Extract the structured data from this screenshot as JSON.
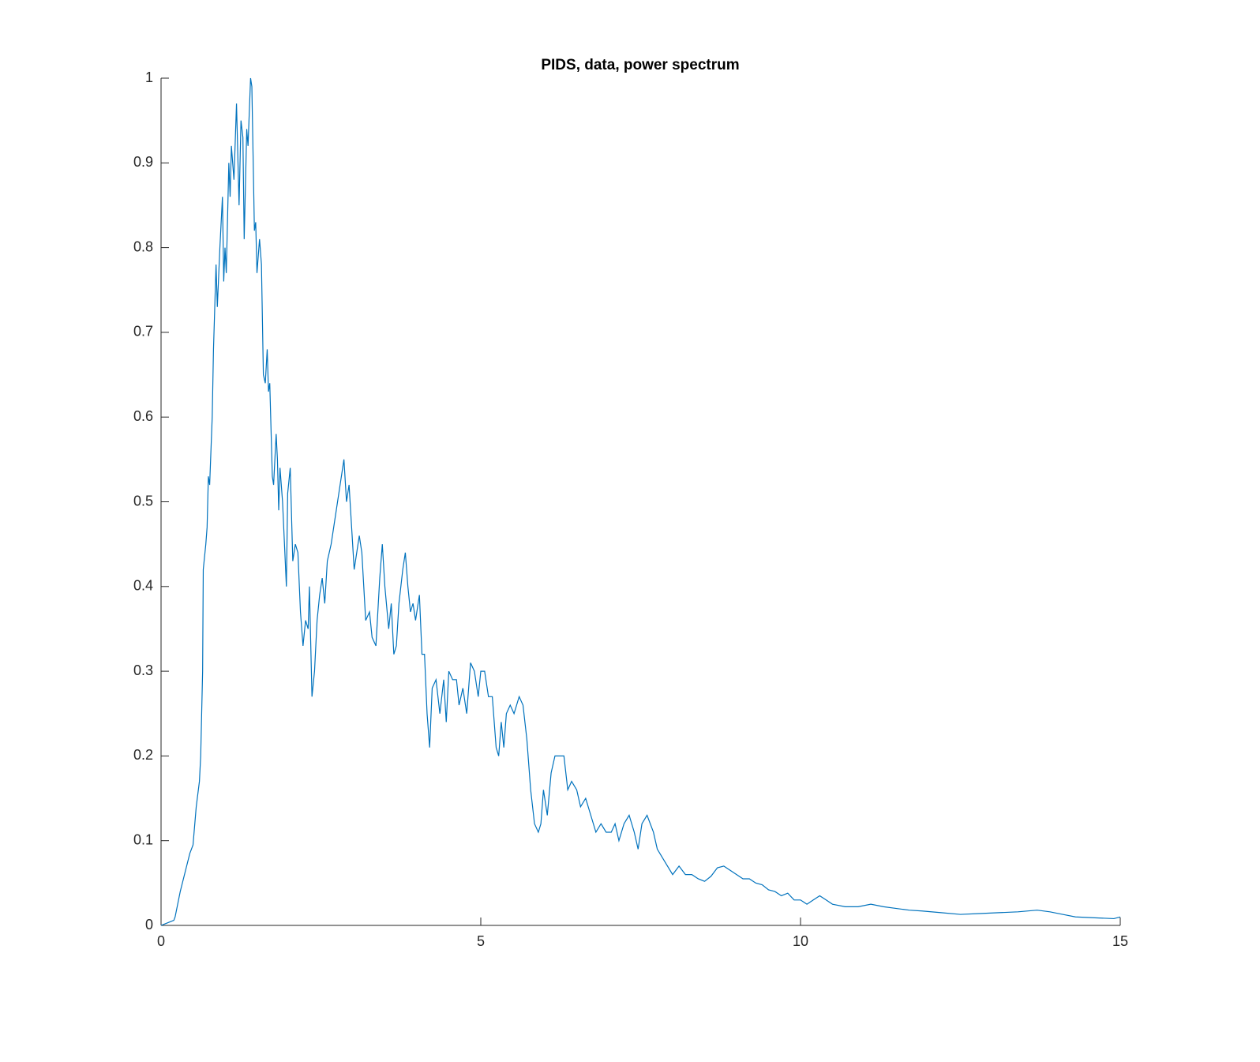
{
  "chart_data": {
    "type": "line",
    "title": "PIDS, data, power spectrum",
    "xlim": [
      0,
      15
    ],
    "xticks": [
      0,
      5,
      10,
      15
    ],
    "ylim": [
      0,
      1
    ],
    "yticks": [
      0,
      0.1,
      0.2,
      0.3,
      0.4,
      0.5,
      0.6,
      0.7,
      0.8,
      0.9,
      1
    ],
    "series": [
      {
        "color": "#0072bd",
        "x": [
          0,
          0.1,
          0.2,
          0.22,
          0.3,
          0.4,
          0.45,
          0.5,
          0.55,
          0.6,
          0.62,
          0.65,
          0.66,
          0.7,
          0.72,
          0.74,
          0.76,
          0.8,
          0.82,
          0.86,
          0.88,
          0.92,
          0.96,
          0.98,
          1.0,
          1.02,
          1.06,
          1.08,
          1.1,
          1.14,
          1.18,
          1.22,
          1.25,
          1.28,
          1.3,
          1.34,
          1.36,
          1.4,
          1.42,
          1.46,
          1.48,
          1.5,
          1.54,
          1.57,
          1.6,
          1.63,
          1.66,
          1.68,
          1.7,
          1.74,
          1.76,
          1.8,
          1.82,
          1.84,
          1.86,
          1.9,
          1.96,
          1.98,
          2.02,
          2.06,
          2.1,
          2.14,
          2.18,
          2.22,
          2.26,
          2.3,
          2.32,
          2.36,
          2.4,
          2.44,
          2.48,
          2.52,
          2.56,
          2.6,
          2.66,
          2.74,
          2.8,
          2.86,
          2.9,
          2.94,
          2.98,
          3.02,
          3.06,
          3.1,
          3.14,
          3.2,
          3.26,
          3.3,
          3.36,
          3.42,
          3.46,
          3.5,
          3.56,
          3.6,
          3.64,
          3.68,
          3.72,
          3.78,
          3.82,
          3.86,
          3.9,
          3.94,
          3.98,
          4.04,
          4.08,
          4.12,
          4.16,
          4.2,
          4.24,
          4.3,
          4.36,
          4.42,
          4.46,
          4.5,
          4.56,
          4.62,
          4.66,
          4.72,
          4.78,
          4.84,
          4.9,
          4.96,
          5.0,
          5.06,
          5.12,
          5.18,
          5.24,
          5.28,
          5.32,
          5.36,
          5.4,
          5.46,
          5.52,
          5.6,
          5.66,
          5.72,
          5.78,
          5.84,
          5.9,
          5.94,
          5.98,
          6.04,
          6.1,
          6.16,
          6.24,
          6.3,
          6.36,
          6.42,
          6.5,
          6.56,
          6.64,
          6.72,
          6.8,
          6.88,
          6.96,
          7.04,
          7.1,
          7.16,
          7.24,
          7.32,
          7.4,
          7.46,
          7.52,
          7.6,
          7.7,
          7.76,
          7.84,
          7.92,
          8.0,
          8.1,
          8.2,
          8.3,
          8.4,
          8.5,
          8.6,
          8.7,
          8.8,
          8.9,
          9.0,
          9.1,
          9.2,
          9.3,
          9.4,
          9.5,
          9.6,
          9.7,
          9.8,
          9.9,
          10.0,
          10.1,
          10.2,
          10.3,
          10.4,
          10.5,
          10.7,
          10.9,
          11.1,
          11.3,
          11.5,
          11.7,
          11.9,
          12.2,
          12.5,
          12.8,
          13.1,
          13.4,
          13.7,
          13.9,
          14.1,
          14.3,
          14.6,
          14.9,
          15.0
        ],
        "values": [
          0,
          0.003,
          0.006,
          0.01,
          0.04,
          0.07,
          0.085,
          0.095,
          0.14,
          0.17,
          0.2,
          0.3,
          0.42,
          0.45,
          0.47,
          0.53,
          0.52,
          0.6,
          0.68,
          0.78,
          0.73,
          0.8,
          0.86,
          0.76,
          0.8,
          0.77,
          0.9,
          0.86,
          0.92,
          0.88,
          0.97,
          0.85,
          0.95,
          0.93,
          0.81,
          0.94,
          0.92,
          1.0,
          0.99,
          0.82,
          0.83,
          0.77,
          0.81,
          0.78,
          0.65,
          0.64,
          0.68,
          0.63,
          0.64,
          0.53,
          0.52,
          0.58,
          0.55,
          0.49,
          0.54,
          0.5,
          0.4,
          0.51,
          0.54,
          0.43,
          0.45,
          0.44,
          0.37,
          0.33,
          0.36,
          0.35,
          0.4,
          0.27,
          0.3,
          0.36,
          0.39,
          0.41,
          0.38,
          0.43,
          0.45,
          0.49,
          0.52,
          0.55,
          0.5,
          0.52,
          0.47,
          0.42,
          0.44,
          0.46,
          0.44,
          0.36,
          0.37,
          0.34,
          0.33,
          0.41,
          0.45,
          0.4,
          0.35,
          0.38,
          0.32,
          0.33,
          0.38,
          0.42,
          0.44,
          0.4,
          0.37,
          0.38,
          0.36,
          0.39,
          0.32,
          0.32,
          0.25,
          0.21,
          0.28,
          0.29,
          0.25,
          0.29,
          0.24,
          0.3,
          0.29,
          0.29,
          0.26,
          0.28,
          0.25,
          0.31,
          0.3,
          0.27,
          0.3,
          0.3,
          0.27,
          0.27,
          0.21,
          0.2,
          0.24,
          0.21,
          0.25,
          0.26,
          0.25,
          0.27,
          0.26,
          0.22,
          0.16,
          0.12,
          0.11,
          0.12,
          0.16,
          0.13,
          0.18,
          0.2,
          0.2,
          0.2,
          0.16,
          0.17,
          0.16,
          0.14,
          0.15,
          0.13,
          0.11,
          0.12,
          0.11,
          0.11,
          0.12,
          0.1,
          0.12,
          0.13,
          0.11,
          0.09,
          0.12,
          0.13,
          0.11,
          0.09,
          0.08,
          0.07,
          0.06,
          0.07,
          0.06,
          0.06,
          0.055,
          0.052,
          0.058,
          0.068,
          0.07,
          0.065,
          0.06,
          0.055,
          0.055,
          0.05,
          0.048,
          0.042,
          0.04,
          0.035,
          0.038,
          0.03,
          0.03,
          0.025,
          0.03,
          0.035,
          0.03,
          0.025,
          0.022,
          0.022,
          0.025,
          0.022,
          0.02,
          0.018,
          0.017,
          0.015,
          0.013,
          0.014,
          0.015,
          0.016,
          0.018,
          0.016,
          0.013,
          0.01,
          0.009,
          0.008,
          0.01
        ]
      }
    ]
  }
}
